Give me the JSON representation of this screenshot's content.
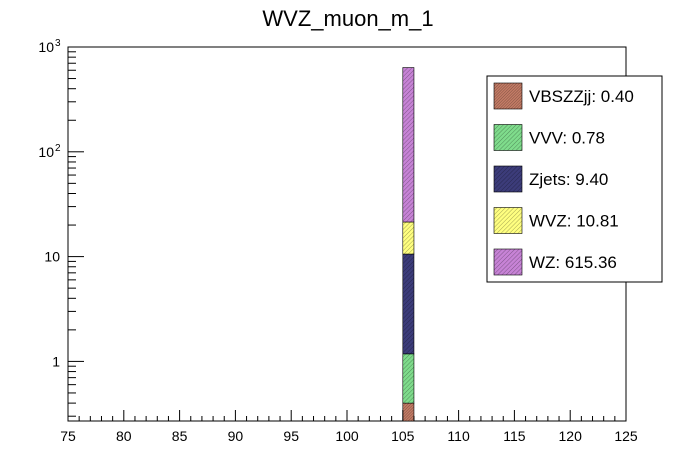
{
  "chart_data": {
    "type": "bar",
    "title": "WVZ_muon_m_1",
    "xlabel": "",
    "ylabel": "",
    "xlim": [
      75,
      125
    ],
    "ylim": [
      0.27,
      1000
    ],
    "y_scale": "log",
    "x_ticks": [
      "75",
      "80",
      "85",
      "90",
      "95",
      "100",
      "105",
      "110",
      "115",
      "120",
      "125"
    ],
    "y_tick_labels": [
      {
        "value": 1,
        "label": "1"
      },
      {
        "value": 10,
        "label": "10"
      },
      {
        "value": 100,
        "label": "10",
        "exp": "2"
      },
      {
        "value": 1000,
        "label": "10",
        "exp": "3"
      }
    ],
    "stacked": true,
    "bin": [
      105,
      106
    ],
    "series": [
      {
        "name": "VBSZZjj",
        "value": 0.4,
        "legend": "VBSZZjj: 0.40",
        "color": "#c47c66",
        "pattern": "hatch-dense"
      },
      {
        "name": "VVV",
        "value": 0.78,
        "legend": "VVV: 0.78",
        "color": "#7fdc8c",
        "pattern": "hatch"
      },
      {
        "name": "Zjets",
        "value": 9.4,
        "legend": "Zjets: 9.40",
        "color": "#3c3c7a",
        "pattern": "hatch"
      },
      {
        "name": "WVZ",
        "value": 10.81,
        "legend": "WVZ: 10.81",
        "color": "#ffff80",
        "pattern": "hatch"
      },
      {
        "name": "WZ",
        "value": 615.36,
        "legend": "WZ: 615.36",
        "color": "#c783d6",
        "pattern": "hatch"
      }
    ],
    "legend_placement": "top-right"
  }
}
